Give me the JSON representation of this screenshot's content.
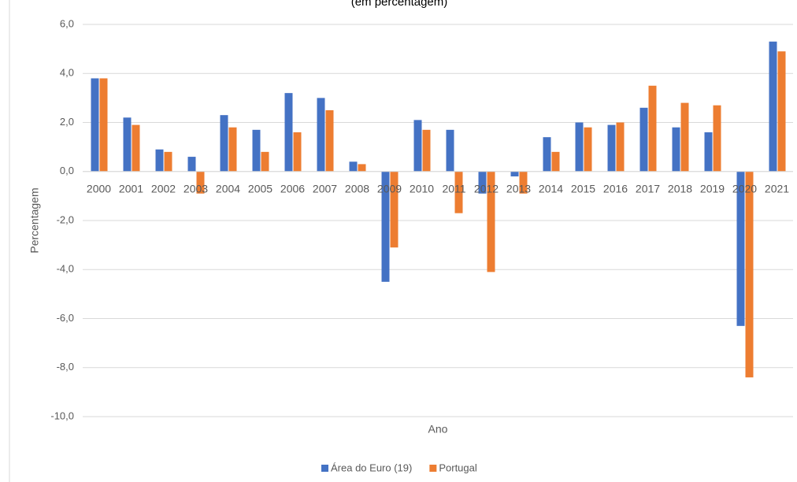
{
  "chart_data": {
    "type": "bar",
    "subtitle": "(em percentagem)",
    "x_label": "Ano",
    "y_label": "Percentagem",
    "categories": [
      "2000",
      "2001",
      "2002",
      "2003",
      "2004",
      "2005",
      "2006",
      "2007",
      "2008",
      "2009",
      "2010",
      "2011",
      "2012",
      "2013",
      "2014",
      "2015",
      "2016",
      "2017",
      "2018",
      "2019",
      "2020",
      "2021"
    ],
    "series": [
      {
        "name": "Área do Euro (19)",
        "color": "#4472c4",
        "values": [
          3.8,
          2.2,
          0.9,
          0.6,
          2.3,
          1.7,
          3.2,
          3.0,
          0.4,
          -4.5,
          2.1,
          1.7,
          -0.9,
          -0.2,
          1.4,
          2.0,
          1.9,
          2.6,
          1.8,
          1.6,
          -6.3,
          5.3
        ]
      },
      {
        "name": "Portugal",
        "color": "#ed7d31",
        "values": [
          3.8,
          1.9,
          0.8,
          -0.9,
          1.8,
          0.8,
          1.6,
          2.5,
          0.3,
          -3.1,
          1.7,
          -1.7,
          -4.1,
          -0.9,
          0.8,
          1.8,
          2.0,
          3.5,
          2.8,
          2.7,
          -8.4,
          4.9
        ]
      }
    ],
    "ylim": [
      -10,
      6
    ],
    "yticks": [
      {
        "value": -10,
        "label": "-10,0"
      },
      {
        "value": -8,
        "label": "-8,0"
      },
      {
        "value": -6,
        "label": "-6,0"
      },
      {
        "value": -4,
        "label": "-4,0"
      },
      {
        "value": -2,
        "label": "-2,0"
      },
      {
        "value": 0,
        "label": "0,0"
      },
      {
        "value": 2,
        "label": "2,0"
      },
      {
        "value": 4,
        "label": "4,0"
      },
      {
        "value": 6,
        "label": "6,0"
      }
    ],
    "grid": true,
    "legend": "bottom"
  }
}
